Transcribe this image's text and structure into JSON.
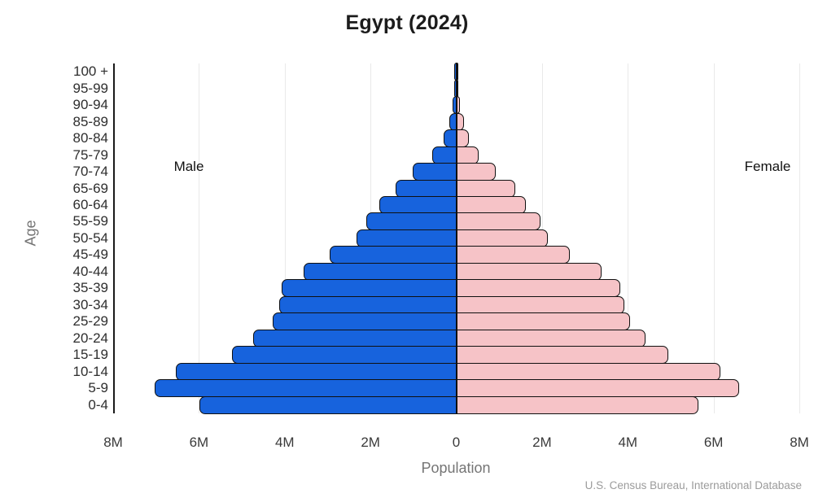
{
  "title": "Egypt (2024)",
  "labels": {
    "male": "Male",
    "female": "Female",
    "age_axis": "Age",
    "population_axis": "Population"
  },
  "source": "U.S. Census Bureau, International Database",
  "colors": {
    "male_bar": "#1763dd",
    "female_bar": "#f6c3c7",
    "bar_border": "#101010",
    "gridline": "#e9e9e9",
    "axis_line": "#1a1a1a"
  },
  "chart_data": {
    "type": "bar",
    "subtype": "population-pyramid",
    "orientation": "horizontal",
    "title": "Egypt (2024)",
    "xlabel": "Population",
    "ylabel": "Age",
    "unit": "millions of people",
    "xlim_abs": [
      0,
      8
    ],
    "grid": "vertical-light",
    "legend": {
      "left_side": "Male",
      "right_side": "Female"
    },
    "categories_top_to_bottom": [
      "100 +",
      "95-99",
      "90-94",
      "85-89",
      "80-84",
      "75-79",
      "70-74",
      "65-69",
      "60-64",
      "55-59",
      "50-54",
      "45-49",
      "40-44",
      "35-39",
      "30-34",
      "25-29",
      "20-24",
      "15-19",
      "10-14",
      "5-9",
      "0-4"
    ],
    "series": [
      {
        "name": "Male",
        "side": "left",
        "color": "#1763dd",
        "values_top_to_bottom": [
          0.003,
          0.01,
          0.04,
          0.13,
          0.25,
          0.53,
          0.97,
          1.38,
          1.76,
          2.06,
          2.29,
          2.92,
          3.52,
          4.03,
          4.09,
          4.24,
          4.7,
          5.19,
          6.5,
          6.99,
          5.95
        ]
      },
      {
        "name": "Female",
        "side": "right",
        "color": "#f6c3c7",
        "values_top_to_bottom": [
          0.005,
          0.015,
          0.05,
          0.15,
          0.25,
          0.49,
          0.89,
          1.34,
          1.59,
          1.93,
          2.1,
          2.61,
          3.35,
          3.79,
          3.88,
          4.02,
          4.37,
          4.91,
          6.12,
          6.55,
          5.61
        ]
      }
    ],
    "x_ticks": [
      {
        "label": "8M",
        "value": -8
      },
      {
        "label": "6M",
        "value": -6
      },
      {
        "label": "4M",
        "value": -4
      },
      {
        "label": "2M",
        "value": -2
      },
      {
        "label": "0",
        "value": 0
      },
      {
        "label": "2M",
        "value": 2
      },
      {
        "label": "4M",
        "value": 4
      },
      {
        "label": "6M",
        "value": 6
      },
      {
        "label": "8M",
        "value": 8
      }
    ]
  }
}
